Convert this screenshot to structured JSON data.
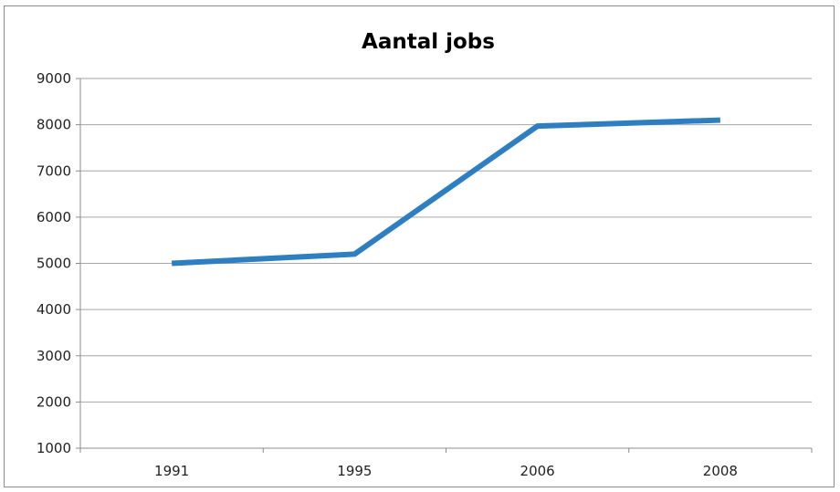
{
  "chart_data": {
    "type": "line",
    "title": "Aantal jobs",
    "xlabel": "",
    "ylabel": "",
    "categories": [
      "1991",
      "1995",
      "2006",
      "2008"
    ],
    "series": [
      {
        "values": [
          5000,
          5200,
          7970,
          8100
        ],
        "color": "#2e7fc1"
      }
    ],
    "ylim": [
      1000,
      9000
    ],
    "yticks": [
      1000,
      2000,
      3000,
      4000,
      5000,
      6000,
      7000,
      8000,
      9000
    ],
    "grid": true,
    "legend": "none"
  }
}
